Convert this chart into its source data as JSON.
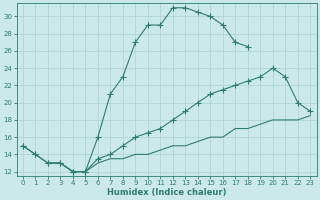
{
  "xlabel": "Humidex (Indice chaleur)",
  "bg_color": "#cce9e9",
  "grid_color": "#b0d4d4",
  "line_color": "#2e7d6e",
  "line1_x": [
    0,
    1,
    2,
    3,
    4,
    5,
    6,
    7,
    8,
    9,
    10,
    11,
    12,
    13,
    14,
    15,
    16,
    17,
    18
  ],
  "line1_y": [
    15,
    14,
    13,
    13,
    12,
    12,
    16,
    21,
    23,
    27,
    29,
    29,
    31,
    31,
    30.5,
    30,
    29,
    27,
    26.5
  ],
  "line2_x": [
    0,
    1,
    2,
    3,
    4,
    5,
    6,
    7,
    8,
    9,
    10,
    11,
    12,
    13,
    14,
    15,
    16,
    17,
    18,
    19,
    20,
    21,
    22,
    23
  ],
  "line2_y": [
    15,
    14,
    13,
    13,
    12,
    12,
    13.5,
    14,
    15,
    16,
    16.5,
    17,
    18,
    19,
    20,
    21,
    21.5,
    22,
    22.5,
    23,
    24,
    23,
    20,
    19
  ],
  "line3_x": [
    2,
    3,
    4,
    5,
    6,
    7,
    8,
    9,
    10,
    11,
    12,
    13,
    14,
    15,
    16,
    17,
    18,
    19,
    20,
    21,
    22,
    23
  ],
  "line3_y": [
    13,
    13,
    12,
    12,
    13,
    13.5,
    13.5,
    14,
    14,
    14.5,
    15,
    15,
    15.5,
    16,
    16,
    17,
    17,
    17.5,
    18,
    18,
    18,
    18.5
  ],
  "xlim": [
    -0.5,
    23.5
  ],
  "ylim": [
    11.5,
    31.5
  ],
  "yticks": [
    12,
    14,
    16,
    18,
    20,
    22,
    24,
    26,
    28,
    30
  ],
  "xticks": [
    0,
    1,
    2,
    3,
    4,
    5,
    6,
    7,
    8,
    9,
    10,
    11,
    12,
    13,
    14,
    15,
    16,
    17,
    18,
    19,
    20,
    21,
    22,
    23
  ],
  "xlabel_fontsize": 6,
  "tick_fontsize": 5,
  "marker_size": 2.5,
  "line_width": 0.8
}
